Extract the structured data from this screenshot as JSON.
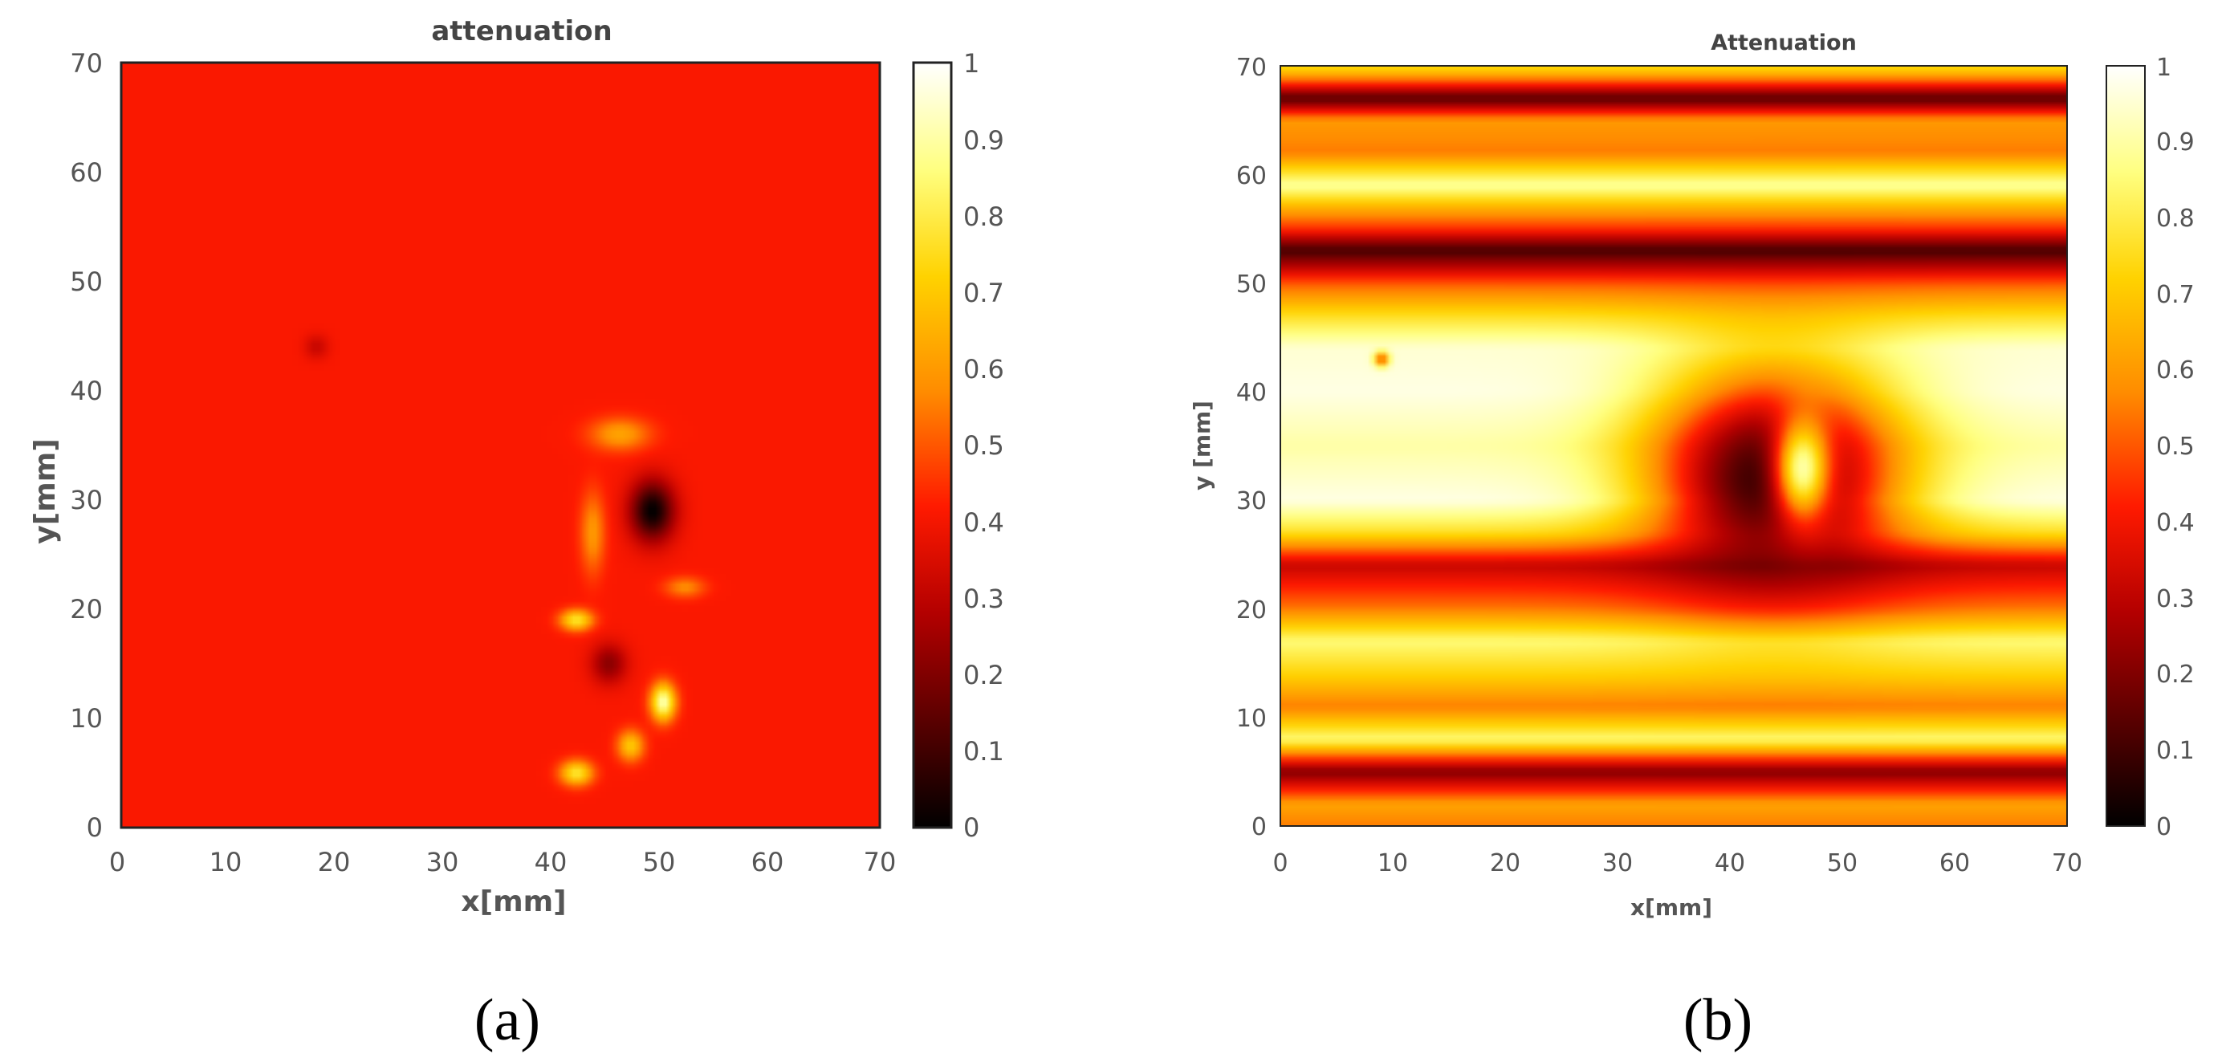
{
  "colors": {
    "colormap": [
      "#000000",
      "#5a0000",
      "#b30000",
      "#ff1a00",
      "#ff8c00",
      "#ffd200",
      "#ffff80",
      "#ffffff"
    ],
    "axis_text": "#555555",
    "frame": "#222222"
  },
  "chart_data": [
    {
      "type": "heatmap",
      "panel_label": "(a)",
      "title": "attenuation",
      "xlabel": "x[mm]",
      "ylabel": "y[mm]",
      "xlim": [
        0,
        70
      ],
      "ylim": [
        0,
        70
      ],
      "x_ticks": [
        "0",
        "10",
        "20",
        "30",
        "40",
        "50",
        "60",
        "70"
      ],
      "y_ticks": [
        "0",
        "10",
        "20",
        "30",
        "40",
        "50",
        "60",
        "70"
      ],
      "colorbar": {
        "range": [
          0,
          1
        ],
        "ticks": [
          "0",
          "0.1",
          "0.2",
          "0.3",
          "0.4",
          "0.5",
          "0.6",
          "0.7",
          "0.8",
          "0.9",
          "1"
        ]
      },
      "colormap": "hot",
      "background_value": 0.42,
      "features": [
        {
          "x": 49,
          "y": 29,
          "rx": 2.2,
          "ry": 3.0,
          "value": 0.0
        },
        {
          "x": 50,
          "y": 11.5,
          "rx": 1.2,
          "ry": 1.8,
          "value": 0.92
        },
        {
          "x": 42,
          "y": 19,
          "rx": 1.6,
          "ry": 1.0,
          "value": 0.78
        },
        {
          "x": 42,
          "y": 5,
          "rx": 1.6,
          "ry": 1.2,
          "value": 0.78
        },
        {
          "x": 47,
          "y": 7.5,
          "rx": 1.3,
          "ry": 1.5,
          "value": 0.7
        },
        {
          "x": 46,
          "y": 36,
          "rx": 3.0,
          "ry": 1.6,
          "value": 0.62
        },
        {
          "x": 43.5,
          "y": 27,
          "rx": 1.2,
          "ry": 4.0,
          "value": 0.6
        },
        {
          "x": 52,
          "y": 22,
          "rx": 2.0,
          "ry": 1.0,
          "value": 0.58
        },
        {
          "x": 45,
          "y": 15,
          "rx": 1.8,
          "ry": 2.0,
          "value": 0.22
        },
        {
          "x": 18,
          "y": 44,
          "rx": 1.2,
          "ry": 1.2,
          "value": 0.32
        }
      ]
    },
    {
      "type": "heatmap",
      "panel_label": "(b)",
      "title": "Attenuation",
      "xlabel": "x[mm]",
      "ylabel": "y [mm]",
      "xlim": [
        0,
        70
      ],
      "ylim": [
        0,
        70
      ],
      "x_ticks": [
        "0",
        "10",
        "20",
        "30",
        "40",
        "50",
        "60",
        "70"
      ],
      "y_ticks": [
        "0",
        "10",
        "20",
        "30",
        "40",
        "50",
        "60",
        "70"
      ],
      "colorbar": {
        "range": [
          0,
          1
        ],
        "ticks": [
          "0",
          "0.1",
          "0.2",
          "0.3",
          "0.4",
          "0.5",
          "0.6",
          "0.7",
          "0.8",
          "0.9",
          "1"
        ]
      },
      "colormap": "hot",
      "row_profile": [
        {
          "y": 0,
          "value": 0.55
        },
        {
          "y": 2,
          "value": 0.62
        },
        {
          "y": 5,
          "value": 0.2
        },
        {
          "y": 8,
          "value": 0.85
        },
        {
          "y": 11,
          "value": 0.55
        },
        {
          "y": 14,
          "value": 0.72
        },
        {
          "y": 17,
          "value": 0.85
        },
        {
          "y": 20,
          "value": 0.55
        },
        {
          "y": 24,
          "value": 0.32
        },
        {
          "y": 27,
          "value": 0.75
        },
        {
          "y": 30,
          "value": 0.97
        },
        {
          "y": 35,
          "value": 0.9
        },
        {
          "y": 40,
          "value": 0.97
        },
        {
          "y": 44,
          "value": 0.95
        },
        {
          "y": 47,
          "value": 0.75
        },
        {
          "y": 50,
          "value": 0.5
        },
        {
          "y": 53,
          "value": 0.1
        },
        {
          "y": 55,
          "value": 0.45
        },
        {
          "y": 57,
          "value": 0.65
        },
        {
          "y": 59,
          "value": 0.9
        },
        {
          "y": 62,
          "value": 0.55
        },
        {
          "y": 65,
          "value": 0.6
        },
        {
          "y": 67,
          "value": 0.12
        },
        {
          "y": 69,
          "value": 0.6
        },
        {
          "y": 70,
          "value": 0.75
        }
      ],
      "features": [
        {
          "x": 44,
          "y": 32,
          "rx": 12,
          "ry": 11,
          "value": 0.05
        },
        {
          "x": 46.5,
          "y": 33,
          "rx": 2.8,
          "ry": 5.5,
          "value": 0.9
        },
        {
          "x": 9,
          "y": 43,
          "rx": 0.7,
          "ry": 0.7,
          "value": 0.45
        }
      ]
    }
  ]
}
